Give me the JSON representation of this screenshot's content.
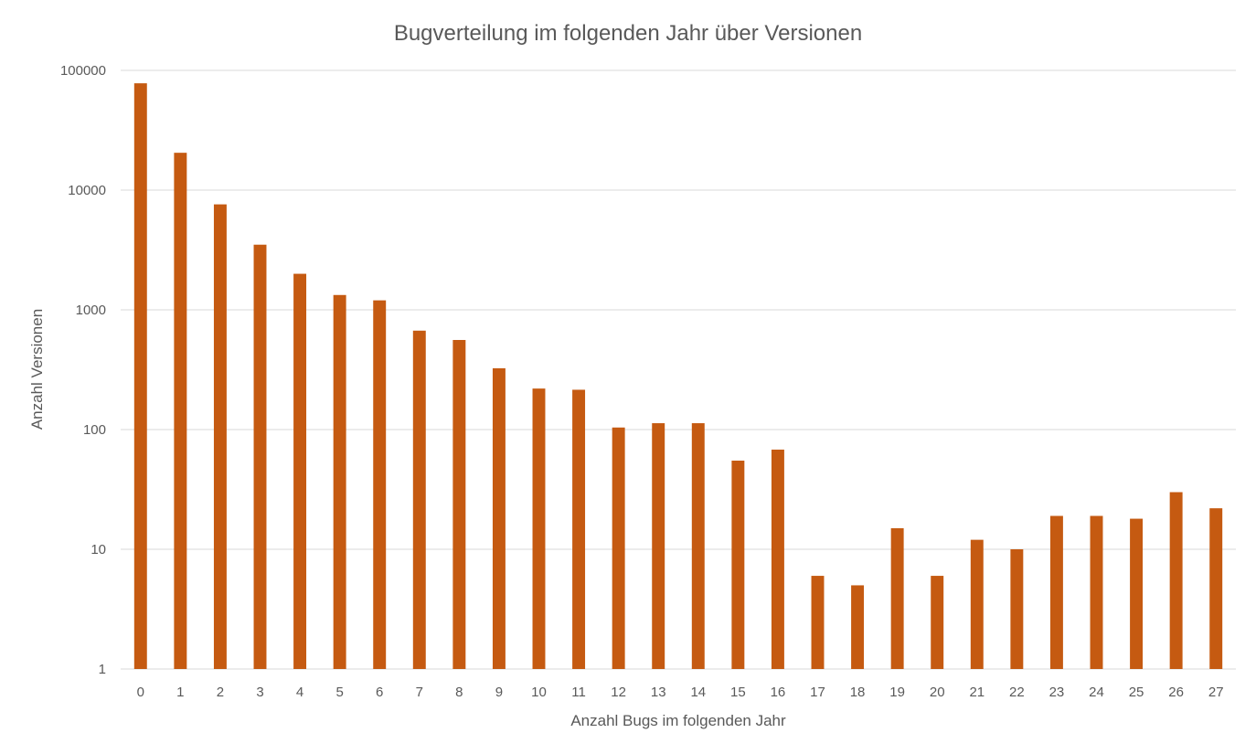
{
  "chart_data": {
    "type": "bar",
    "title": "Bugverteilung im folgenden Jahr über Versionen",
    "xlabel": "Anzahl Bugs im folgenden Jahr",
    "ylabel": "Anzahl Versionen",
    "y_scale": "log",
    "ylim": [
      1,
      100000
    ],
    "y_ticks": [
      "1",
      "10",
      "100",
      "1000",
      "10000",
      "100000"
    ],
    "grid": true,
    "legend": "none",
    "bar_color": "#C55A11",
    "categories": [
      "0",
      "1",
      "2",
      "3",
      "4",
      "5",
      "6",
      "7",
      "8",
      "9",
      "10",
      "11",
      "12",
      "13",
      "14",
      "15",
      "16",
      "17",
      "18",
      "19",
      "20",
      "21",
      "22",
      "23",
      "24",
      "25",
      "26",
      "27"
    ],
    "values": [
      78000,
      20500,
      7600,
      3500,
      2000,
      1330,
      1200,
      670,
      560,
      325,
      220,
      215,
      104,
      113,
      113,
      55,
      68,
      6,
      5,
      15,
      6,
      12,
      10,
      19,
      19,
      18,
      30,
      22
    ]
  }
}
